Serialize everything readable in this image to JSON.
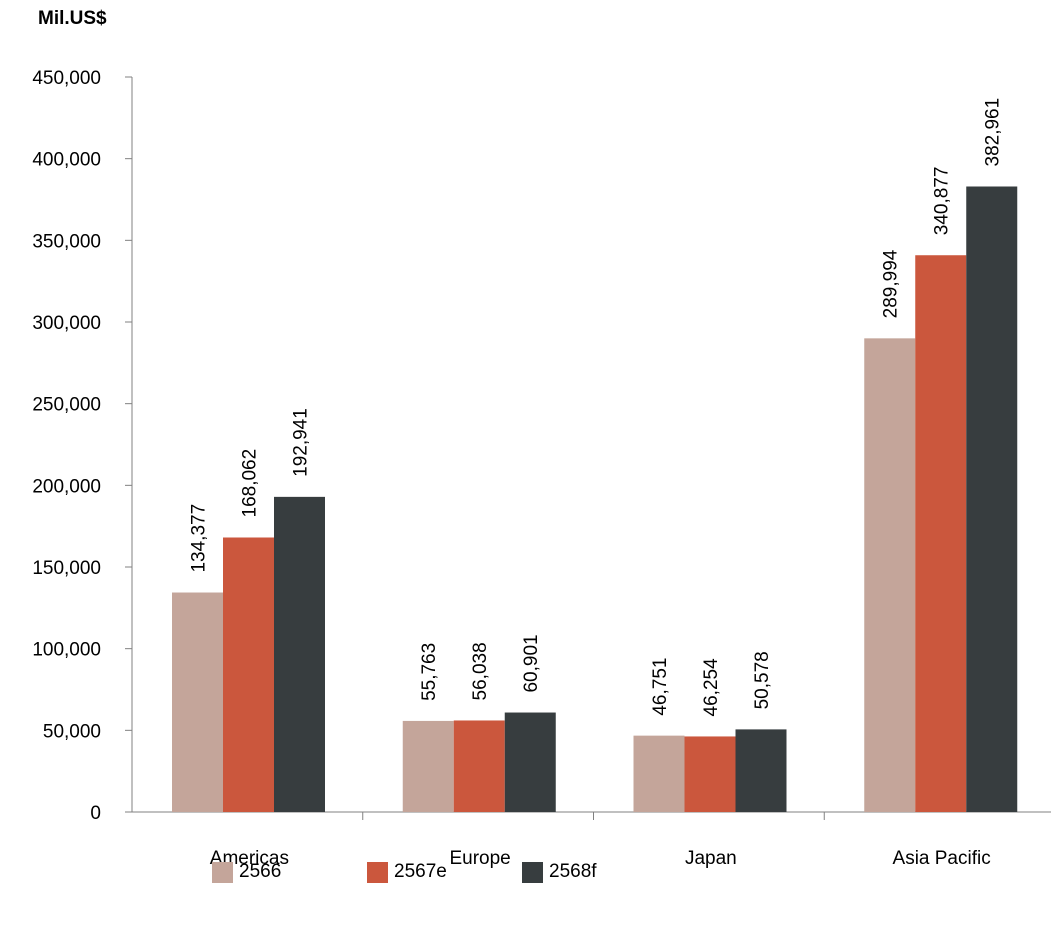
{
  "chart_data": {
    "type": "bar",
    "title": "",
    "unit_label": "Mil.US$",
    "categories": [
      "Americas",
      "Europe",
      "Japan",
      "Asia Pacific"
    ],
    "series": [
      {
        "name": "2566",
        "color": "#c4a59a",
        "values": [
          134377,
          55763,
          46751,
          289994
        ],
        "labels": [
          "134,377",
          "55,763",
          "46,751",
          "289,994"
        ]
      },
      {
        "name": "2567e",
        "color": "#cb573d",
        "values": [
          168062,
          56038,
          46254,
          340877
        ],
        "labels": [
          "168,062",
          "56,038",
          "46,254",
          "340,877"
        ]
      },
      {
        "name": "2568f",
        "color": "#373d3f",
        "values": [
          192941,
          60901,
          50578,
          382961
        ],
        "labels": [
          "192,941",
          "60,901",
          "50,578",
          "382,961"
        ]
      }
    ],
    "ylim": [
      0,
      450000
    ],
    "yticks": [
      0,
      50000,
      100000,
      150000,
      200000,
      250000,
      300000,
      350000,
      400000,
      450000
    ],
    "ytick_labels": [
      "0",
      "50,000",
      "100,000",
      "150,000",
      "200,000",
      "250,000",
      "300,000",
      "350,000",
      "400,000",
      "450,000"
    ],
    "grid": false,
    "legend_position": "bottom"
  }
}
